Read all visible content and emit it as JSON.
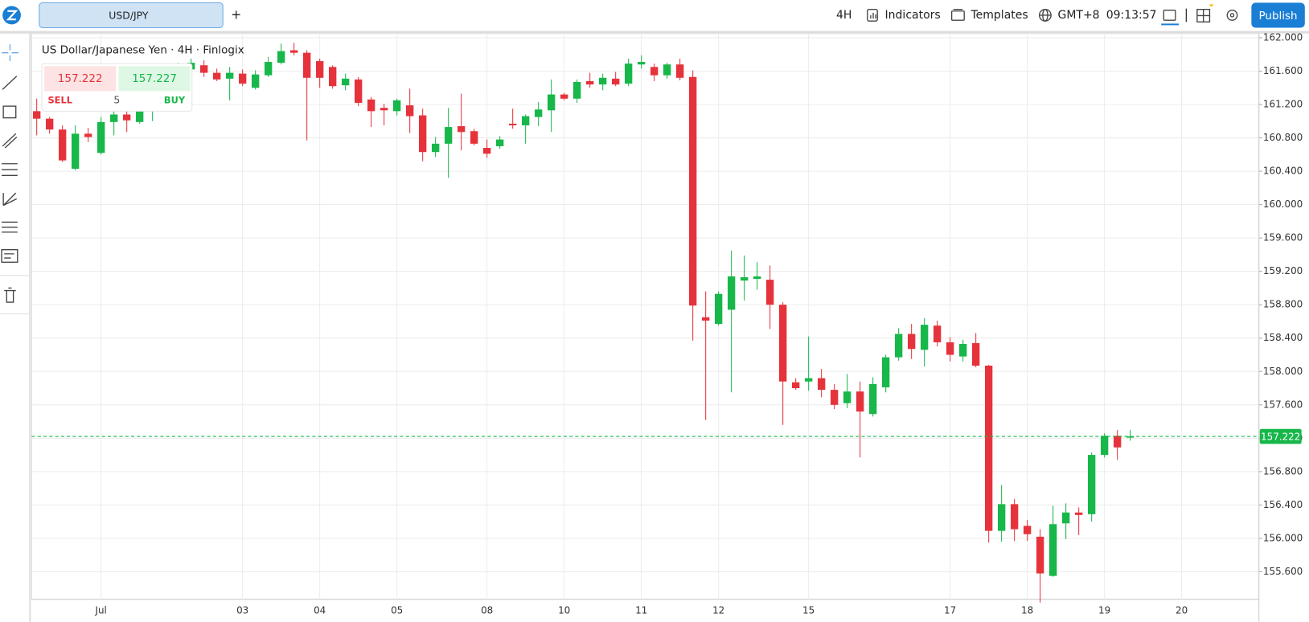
{
  "toolbar": {
    "symbol": "USD/JPY",
    "add": "+",
    "interval": "4H",
    "indicators": "Indicators",
    "templates": "Templates",
    "timezone": "GMT+8",
    "time": "09:13:57",
    "publish": "Publish"
  },
  "quote": {
    "sell_price": "157.222",
    "buy_price": "157.227",
    "sell": "SELL",
    "buy": "BUY",
    "quantity": "5"
  },
  "chart_data": {
    "type": "candlestick",
    "title": "US Dollar/Japanese Yen · 4H · Finlogix",
    "categories": [
      null,
      null,
      null,
      null,
      null,
      "Jul",
      null,
      null,
      null,
      null,
      null,
      null,
      null,
      null,
      null,
      null,
      "03",
      null,
      null,
      null,
      null,
      null,
      "04",
      null,
      null,
      null,
      null,
      null,
      "05",
      null,
      null,
      null,
      null,
      null,
      null,
      "08",
      null,
      null,
      null,
      null,
      null,
      "10",
      null,
      null,
      null,
      null,
      null,
      "11",
      null,
      null,
      null,
      null,
      null,
      "12",
      null,
      null,
      null,
      null,
      null,
      null,
      "15",
      null,
      null,
      null,
      null,
      null,
      null,
      null,
      null,
      null,
      null,
      "17",
      null,
      null,
      null,
      null,
      null,
      "18",
      null,
      null,
      null,
      null,
      null,
      "19",
      null,
      null,
      null,
      null,
      null,
      "20",
      null,
      null,
      null,
      null,
      null,
      null
    ],
    "open": [
      161.12,
      161.03,
      160.9,
      160.43,
      160.85,
      160.62,
      160.99,
      161.08,
      160.99,
      161.12,
      161.3,
      161.55,
      161.62,
      161.67,
      161.58,
      161.51,
      161.57,
      161.4,
      161.55,
      161.7,
      161.85,
      161.82,
      161.72,
      161.65,
      161.43,
      161.5,
      161.26,
      161.16,
      161.12,
      161.19,
      161.07,
      160.63,
      160.73,
      160.94,
      160.88,
      160.68,
      160.7,
      160.97,
      160.95,
      161.05,
      161.13,
      161.32,
      161.27,
      161.48,
      161.44,
      161.51,
      161.45,
      161.68,
      161.65,
      161.55,
      161.68,
      161.53,
      158.65,
      158.57,
      158.74,
      159.09,
      159.11,
      159.1,
      158.8,
      157.87,
      157.88,
      157.92,
      157.78,
      157.62,
      157.76,
      157.49,
      157.81,
      158.17,
      158.45,
      158.26,
      158.55,
      158.35,
      158.18,
      158.34,
      158.07,
      156.09,
      156.41,
      156.15,
      156.02,
      155.55,
      156.18,
      156.31,
      156.29,
      157.0,
      157.23,
      157.21,
      null,
      null,
      null,
      null,
      null,
      null,
      null,
      null,
      null,
      null
    ],
    "high": [
      161.27,
      161.05,
      160.95,
      160.95,
      160.92,
      161.05,
      161.15,
      161.15,
      161.2,
      161.35,
      161.6,
      161.7,
      161.75,
      161.73,
      161.63,
      161.65,
      161.62,
      161.61,
      161.77,
      161.93,
      161.94,
      161.85,
      161.75,
      161.67,
      161.57,
      161.53,
      161.29,
      161.21,
      161.27,
      161.39,
      161.15,
      160.81,
      161.16,
      161.33,
      160.91,
      160.78,
      160.82,
      161.15,
      161.08,
      161.23,
      161.5,
      161.34,
      161.5,
      161.58,
      161.57,
      161.59,
      161.75,
      161.79,
      161.69,
      161.7,
      161.75,
      161.61,
      158.96,
      158.96,
      159.45,
      159.39,
      159.31,
      159.27,
      158.83,
      157.92,
      158.42,
      158.03,
      157.85,
      157.97,
      157.88,
      157.93,
      158.2,
      158.52,
      158.57,
      158.64,
      158.61,
      158.41,
      158.38,
      158.46,
      158.08,
      156.64,
      156.47,
      156.22,
      156.11,
      156.39,
      156.42,
      156.37,
      157.03,
      157.26,
      157.3,
      157.3,
      null,
      null,
      null,
      null,
      null,
      null,
      null,
      null,
      null,
      null
    ],
    "low": [
      160.83,
      160.85,
      160.51,
      160.41,
      160.75,
      160.6,
      160.83,
      160.87,
      160.97,
      161.0,
      161.25,
      161.5,
      161.58,
      161.53,
      161.48,
      161.25,
      161.42,
      161.38,
      161.53,
      161.68,
      161.79,
      160.77,
      161.4,
      161.39,
      161.37,
      161.18,
      160.93,
      160.95,
      161.07,
      160.86,
      160.52,
      160.57,
      160.32,
      160.65,
      160.71,
      160.56,
      160.67,
      160.91,
      160.73,
      160.94,
      160.87,
      161.25,
      161.22,
      161.4,
      161.37,
      161.42,
      161.42,
      161.63,
      161.48,
      161.51,
      161.49,
      158.37,
      157.42,
      158.55,
      157.75,
      158.85,
      158.98,
      158.51,
      157.36,
      157.78,
      157.77,
      157.69,
      157.55,
      157.56,
      156.97,
      157.46,
      157.75,
      158.13,
      158.15,
      158.06,
      158.3,
      158.12,
      158.12,
      158.05,
      155.95,
      155.96,
      155.97,
      155.97,
      155.23,
      155.54,
      155.99,
      156.04,
      156.2,
      156.97,
      156.94,
      157.17,
      null,
      null,
      null,
      null,
      null,
      null,
      null,
      null,
      null,
      null
    ],
    "close": [
      161.03,
      160.9,
      160.53,
      160.85,
      160.81,
      160.99,
      161.08,
      161.01,
      161.12,
      161.3,
      161.55,
      161.62,
      161.7,
      161.58,
      161.5,
      161.58,
      161.45,
      161.56,
      161.71,
      161.84,
      161.82,
      161.52,
      161.52,
      161.42,
      161.51,
      161.22,
      161.12,
      161.13,
      161.25,
      161.06,
      160.63,
      160.73,
      160.93,
      160.87,
      160.73,
      160.61,
      160.78,
      160.95,
      161.06,
      161.14,
      161.32,
      161.27,
      161.47,
      161.44,
      161.52,
      161.44,
      161.69,
      161.71,
      161.55,
      161.68,
      161.52,
      158.79,
      158.61,
      158.93,
      159.14,
      159.13,
      159.14,
      158.8,
      157.88,
      157.8,
      157.92,
      157.78,
      157.6,
      157.76,
      157.52,
      157.85,
      158.17,
      158.45,
      158.27,
      158.56,
      158.35,
      158.2,
      158.33,
      158.07,
      156.09,
      156.41,
      156.11,
      156.05,
      155.58,
      156.17,
      156.31,
      156.28,
      157.0,
      157.23,
      157.09,
      157.222,
      null,
      null,
      null,
      null,
      null,
      null,
      null,
      null,
      null,
      null
    ],
    "up_color": "#17b74a",
    "down_color": "#e6333b",
    "last_price": 157.222,
    "ylim": [
      155.27,
      162.05
    ],
    "yticks": [
      {
        "value": 155.6,
        "label": "155.600"
      },
      {
        "value": 156,
        "label": "156.000"
      },
      {
        "value": 156.4,
        "label": "156.400"
      },
      {
        "value": 156.8,
        "label": "156.800"
      },
      {
        "value": 157.2,
        "label": "157.200"
      },
      {
        "value": 157.6,
        "label": "157.600"
      },
      {
        "value": 158,
        "label": "158.000"
      },
      {
        "value": 158.4,
        "label": "158.400"
      },
      {
        "value": 158.8,
        "label": "158.800"
      },
      {
        "value": 159.2,
        "label": "159.200"
      },
      {
        "value": 159.6,
        "label": "159.600"
      },
      {
        "value": 160,
        "label": "160.000"
      },
      {
        "value": 160.4,
        "label": "160.400"
      },
      {
        "value": 160.8,
        "label": "160.800"
      },
      {
        "value": 161.2,
        "label": "161.200"
      },
      {
        "value": 161.6,
        "label": "161.600"
      },
      {
        "value": 162,
        "label": "162.000"
      }
    ],
    "grid": true
  }
}
